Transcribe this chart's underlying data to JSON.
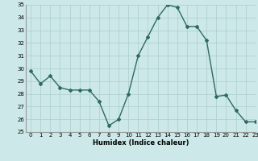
{
  "x": [
    0,
    1,
    2,
    3,
    4,
    5,
    6,
    7,
    8,
    9,
    10,
    11,
    12,
    13,
    14,
    15,
    16,
    17,
    18,
    19,
    20,
    21,
    22,
    23
  ],
  "y": [
    29.8,
    28.8,
    29.4,
    28.5,
    28.3,
    28.3,
    28.3,
    27.4,
    25.5,
    26.0,
    28.0,
    31.0,
    32.5,
    34.0,
    35.0,
    34.8,
    33.3,
    33.3,
    32.2,
    27.8,
    27.9,
    26.7,
    25.8,
    25.8
  ],
  "title": "",
  "xlabel": "Humidex (Indice chaleur)",
  "ylabel": "",
  "ylim": [
    25,
    35
  ],
  "xlim": [
    -0.5,
    23
  ],
  "yticks": [
    25,
    26,
    27,
    28,
    29,
    30,
    31,
    32,
    33,
    34,
    35
  ],
  "xticks": [
    0,
    1,
    2,
    3,
    4,
    5,
    6,
    7,
    8,
    9,
    10,
    11,
    12,
    13,
    14,
    15,
    16,
    17,
    18,
    19,
    20,
    21,
    22,
    23
  ],
  "line_color": "#2e6b5e",
  "bg_color": "#cce8e8",
  "grid_color": "#aacece",
  "marker": "D",
  "marker_size": 2,
  "line_width": 1.0
}
